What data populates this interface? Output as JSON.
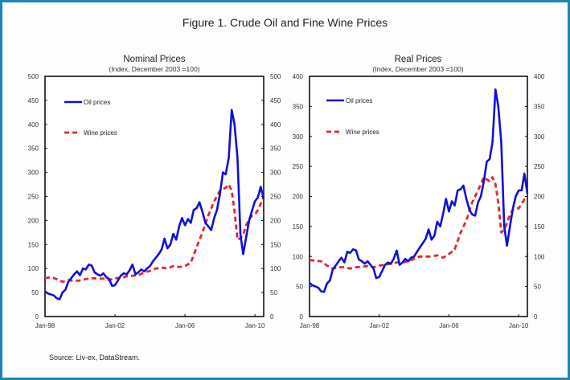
{
  "figure": {
    "title": "Figure 1. Crude Oil and Fine Wine Prices",
    "source": "Source: Liv-ex, DataStream.",
    "colors": {
      "oil": "#1010d8",
      "wine": "#e4262c",
      "border": "#1a86b3"
    }
  },
  "chart_data": [
    {
      "type": "line",
      "title": "Nominal Prices",
      "subtitle": "(Index, December 2003 =100)",
      "xlabel": "",
      "ylabel": "",
      "x_tick_labels": [
        "Jan-98",
        "Jan-02",
        "Jan-06",
        "Jan-10"
      ],
      "x_ticks": [
        1998,
        2002,
        2006,
        2010
      ],
      "xlim": [
        1998,
        2010.5
      ],
      "ylim": [
        0,
        500
      ],
      "y_ticks": [
        0,
        50,
        100,
        150,
        200,
        250,
        300,
        350,
        400,
        450,
        500
      ],
      "y_tick_labels": [
        "0",
        "50",
        "100",
        "150",
        "200",
        "250",
        "300",
        "350",
        "400",
        "450",
        "500"
      ],
      "legend_position": "top-left",
      "grid": false,
      "series": [
        {
          "name": "Oil prices",
          "style": "solid",
          "x": [
            1998.0,
            1998.17,
            1998.33,
            1998.5,
            1998.67,
            1998.83,
            1999.0,
            1999.17,
            1999.33,
            1999.5,
            1999.67,
            1999.83,
            2000.0,
            2000.17,
            2000.33,
            2000.5,
            2000.67,
            2000.83,
            2001.0,
            2001.17,
            2001.33,
            2001.5,
            2001.67,
            2001.83,
            2002.0,
            2002.17,
            2002.33,
            2002.5,
            2002.67,
            2002.83,
            2003.0,
            2003.17,
            2003.33,
            2003.5,
            2003.67,
            2003.83,
            2004.0,
            2004.17,
            2004.33,
            2004.5,
            2004.67,
            2004.83,
            2005.0,
            2005.17,
            2005.33,
            2005.5,
            2005.67,
            2005.83,
            2006.0,
            2006.17,
            2006.33,
            2006.5,
            2006.67,
            2006.83,
            2007.0,
            2007.17,
            2007.33,
            2007.5,
            2007.67,
            2007.83,
            2008.0,
            2008.17,
            2008.33,
            2008.5,
            2008.67,
            2008.83,
            2009.0,
            2009.17,
            2009.33,
            2009.5,
            2009.67,
            2009.83,
            2010.0,
            2010.17,
            2010.33,
            2010.5
          ],
          "y": [
            52,
            48,
            46,
            44,
            38,
            36,
            50,
            56,
            72,
            80,
            88,
            94,
            86,
            100,
            98,
            108,
            106,
            92,
            88,
            85,
            90,
            82,
            78,
            64,
            65,
            75,
            85,
            90,
            88,
            96,
            108,
            88,
            92,
            98,
            94,
            100,
            105,
            115,
            122,
            130,
            140,
            162,
            142,
            150,
            172,
            160,
            188,
            205,
            190,
            203,
            195,
            222,
            226,
            238,
            218,
            195,
            188,
            180,
            205,
            222,
            255,
            300,
            296,
            330,
            430,
            400,
            330,
            170,
            130,
            165,
            200,
            220,
            240,
            248,
            270,
            245
          ]
        },
        {
          "name": "Wine prices",
          "style": "dashed",
          "x": [
            1998.0,
            1998.33,
            1998.67,
            1999.0,
            1999.33,
            1999.67,
            2000.0,
            2000.33,
            2000.67,
            2001.0,
            2001.33,
            2001.67,
            2002.0,
            2002.33,
            2002.67,
            2003.0,
            2003.33,
            2003.67,
            2004.0,
            2004.33,
            2004.67,
            2005.0,
            2005.33,
            2005.67,
            2006.0,
            2006.33,
            2006.67,
            2007.0,
            2007.33,
            2007.67,
            2008.0,
            2008.33,
            2008.5,
            2008.67,
            2008.83,
            2009.0,
            2009.17,
            2009.33,
            2009.5,
            2009.67,
            2009.83,
            2010.0,
            2010.17,
            2010.33,
            2010.5
          ],
          "y": [
            80,
            82,
            78,
            72,
            76,
            74,
            75,
            78,
            80,
            79,
            79,
            76,
            80,
            80,
            84,
            85,
            86,
            92,
            95,
            100,
            102,
            100,
            105,
            103,
            105,
            112,
            145,
            175,
            210,
            240,
            262,
            268,
            275,
            262,
            220,
            160,
            163,
            170,
            190,
            202,
            210,
            212,
            222,
            235,
            250
          ]
        }
      ]
    },
    {
      "type": "line",
      "title": "Real Prices",
      "subtitle": "(Index, December 2003 =100)",
      "xlabel": "",
      "ylabel": "",
      "x_tick_labels": [
        "Jan-98",
        "Jan-02",
        "Jan-06",
        "Jan-10"
      ],
      "x_ticks": [
        1998,
        2002,
        2006,
        2010
      ],
      "xlim": [
        1998,
        2010.5
      ],
      "ylim": [
        0,
        400
      ],
      "y_ticks": [
        0,
        50,
        100,
        150,
        200,
        250,
        300,
        350,
        400
      ],
      "y_tick_labels": [
        "0",
        "50",
        "100",
        "150",
        "200",
        "250",
        "300",
        "350",
        "400"
      ],
      "legend_position": "top-left",
      "grid": false,
      "series": [
        {
          "name": "Oil prices",
          "style": "solid",
          "x": [
            1998.0,
            1998.17,
            1998.33,
            1998.5,
            1998.67,
            1998.83,
            1999.0,
            1999.17,
            1999.33,
            1999.5,
            1999.67,
            1999.83,
            2000.0,
            2000.17,
            2000.33,
            2000.5,
            2000.67,
            2000.83,
            2001.0,
            2001.17,
            2001.33,
            2001.5,
            2001.67,
            2001.83,
            2002.0,
            2002.17,
            2002.33,
            2002.5,
            2002.67,
            2002.83,
            2003.0,
            2003.17,
            2003.33,
            2003.5,
            2003.67,
            2003.83,
            2004.0,
            2004.17,
            2004.33,
            2004.5,
            2004.67,
            2004.83,
            2005.0,
            2005.17,
            2005.33,
            2005.5,
            2005.67,
            2005.83,
            2006.0,
            2006.17,
            2006.33,
            2006.5,
            2006.67,
            2006.83,
            2007.0,
            2007.17,
            2007.33,
            2007.5,
            2007.67,
            2007.83,
            2008.0,
            2008.17,
            2008.33,
            2008.5,
            2008.67,
            2008.83,
            2009.0,
            2009.17,
            2009.33,
            2009.5,
            2009.67,
            2009.83,
            2010.0,
            2010.17,
            2010.33,
            2010.5
          ],
          "y": [
            56,
            52,
            50,
            48,
            42,
            41,
            55,
            60,
            78,
            85,
            92,
            98,
            90,
            108,
            106,
            112,
            110,
            95,
            92,
            88,
            92,
            86,
            80,
            64,
            66,
            76,
            86,
            90,
            88,
            96,
            110,
            86,
            90,
            96,
            92,
            98,
            100,
            108,
            115,
            122,
            130,
            145,
            128,
            135,
            158,
            150,
            172,
            196,
            175,
            192,
            185,
            210,
            212,
            218,
            196,
            178,
            170,
            168,
            190,
            200,
            225,
            258,
            262,
            290,
            378,
            350,
            290,
            150,
            118,
            150,
            180,
            200,
            210,
            210,
            238,
            205
          ]
        },
        {
          "name": "Wine prices",
          "style": "dashed",
          "x": [
            1998.0,
            1998.33,
            1998.67,
            1999.0,
            1999.33,
            1999.67,
            2000.0,
            2000.33,
            2000.67,
            2001.0,
            2001.33,
            2001.67,
            2002.0,
            2002.33,
            2002.67,
            2003.0,
            2003.33,
            2003.67,
            2004.0,
            2004.33,
            2004.67,
            2005.0,
            2005.33,
            2005.67,
            2006.0,
            2006.33,
            2006.67,
            2007.0,
            2007.33,
            2007.67,
            2008.0,
            2008.33,
            2008.5,
            2008.67,
            2008.83,
            2009.0,
            2009.17,
            2009.33,
            2009.5,
            2009.67,
            2009.83,
            2010.0,
            2010.17,
            2010.33,
            2010.5
          ],
          "y": [
            94,
            93,
            92,
            85,
            80,
            82,
            82,
            80,
            82,
            83,
            84,
            82,
            85,
            86,
            88,
            90,
            90,
            92,
            96,
            100,
            100,
            100,
            102,
            98,
            104,
            112,
            140,
            160,
            190,
            210,
            232,
            225,
            232,
            220,
            190,
            140,
            145,
            155,
            170,
            178,
            180,
            180,
            188,
            195,
            195
          ]
        }
      ]
    }
  ]
}
